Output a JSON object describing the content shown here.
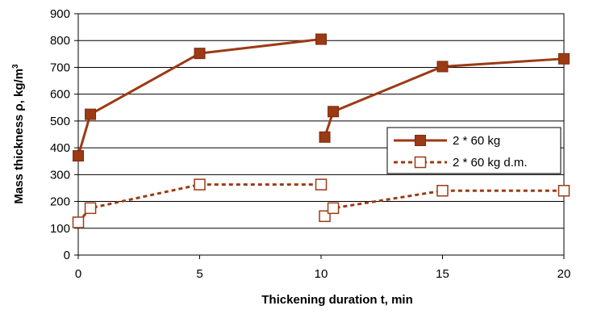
{
  "chart_data": {
    "type": "line",
    "title": "",
    "xlabel": "Thickening duration t, min",
    "ylabel": "Mass thickness ρ, kg/m",
    "ylabel_superscript": "3",
    "xlim": [
      0,
      20
    ],
    "ylim": [
      0,
      900
    ],
    "xticks": [
      0,
      5,
      10,
      15,
      20
    ],
    "yticks": [
      0,
      100,
      200,
      300,
      400,
      500,
      600,
      700,
      800,
      900
    ],
    "grid": "horizontal",
    "legend_position": "right",
    "series": [
      {
        "name": "2 * 60 kg",
        "color": "#9c3a14",
        "marker": "filled-square",
        "line": "solid",
        "segments": [
          [
            [
              0,
              370
            ],
            [
              0.5,
              525
            ],
            [
              5,
              752
            ],
            [
              10,
              805
            ]
          ],
          [
            [
              10.15,
              440
            ],
            [
              10.5,
              535
            ],
            [
              15,
              703
            ],
            [
              20,
              732
            ]
          ]
        ]
      },
      {
        "name": "2 * 60 kg d.m.",
        "color": "#9c3a14",
        "marker": "hollow-square",
        "line": "dotted",
        "segments": [
          [
            [
              0,
              122
            ],
            [
              0.5,
              175
            ],
            [
              5,
              263
            ],
            [
              10,
              263
            ]
          ],
          [
            [
              10.15,
              145
            ],
            [
              10.5,
              175
            ],
            [
              15,
              240
            ],
            [
              20,
              240
            ]
          ]
        ]
      }
    ]
  }
}
